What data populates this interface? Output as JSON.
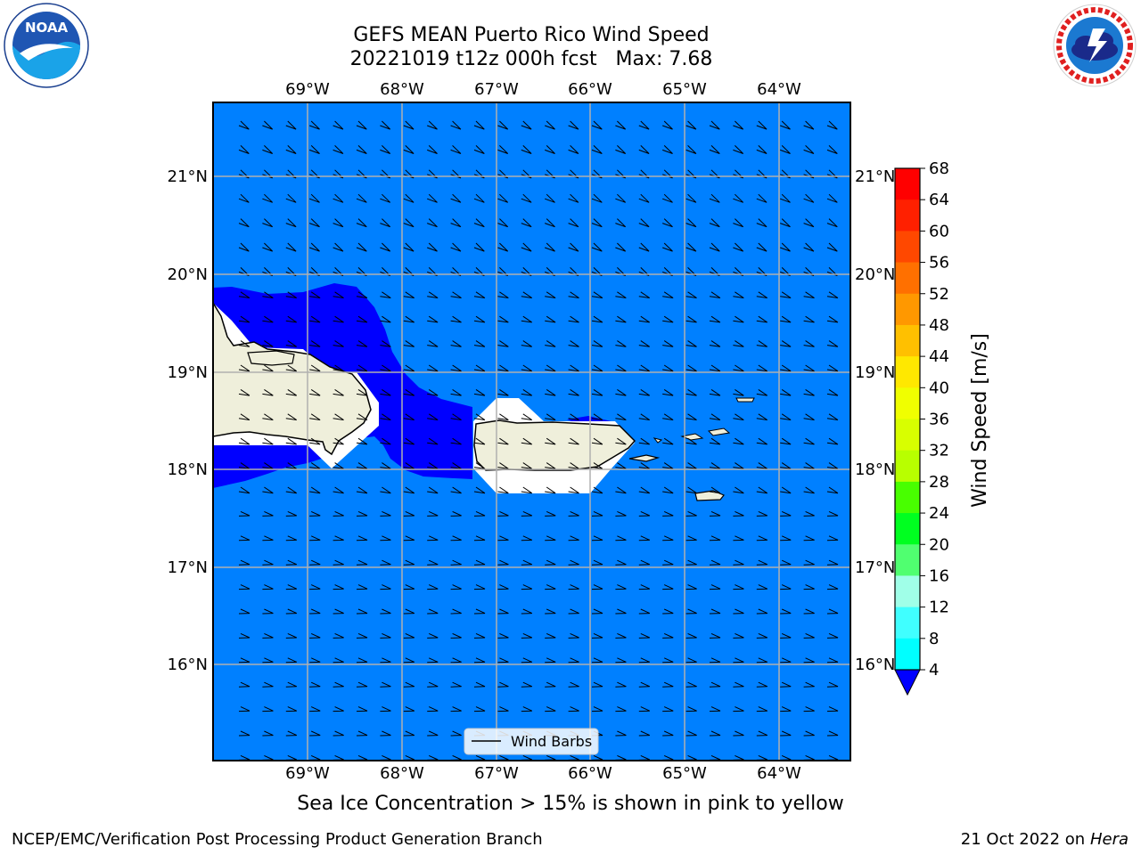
{
  "title": {
    "line1": "GEFS MEAN Puerto Rico Wind Speed",
    "line2": "20221019 t12z 000h fcst   Max: 7.68"
  },
  "logos": {
    "left": {
      "name": "noaa-logo",
      "text": "NOAA",
      "ring_text": "NATIONAL OCEANIC AND ATMOSPHERIC ADMINISTRATION · U.S. DEPARTMENT OF COMMERCE"
    },
    "right": {
      "name": "nws-logo",
      "ring_text": "NATIONAL WEATHER SERVICE"
    }
  },
  "map": {
    "lon_labels": [
      "69°W",
      "68°W",
      "67°W",
      "66°W",
      "65°W",
      "64°W"
    ],
    "lat_labels": [
      "21°N",
      "20°N",
      "19°N",
      "18°N",
      "17°N",
      "16°N"
    ],
    "legend_label": "Wind Barbs",
    "ocean_color": "#0080ff",
    "stronger_wind_color": "#0000ff",
    "land_color": "#efefdb"
  },
  "colorbar": {
    "label": "Wind Speed [m/s]",
    "ticks": [
      "68",
      "64",
      "60",
      "56",
      "52",
      "48",
      "44",
      "40",
      "36",
      "32",
      "28",
      "24",
      "20",
      "16",
      "12",
      "8",
      "4"
    ],
    "colors": [
      "#ff0000",
      "#ff2000",
      "#ff4800",
      "#ff7000",
      "#ff9800",
      "#ffc000",
      "#ffe800",
      "#f0ff00",
      "#d8ff00",
      "#b8ff00",
      "#48ff00",
      "#00ff20",
      "#50ff70",
      "#a0ffe8",
      "#40ffff",
      "#00ffff",
      "#0080ff"
    ],
    "extend_color": "#0000ff"
  },
  "caption": "Sea Ice Concentration > 15% is shown in pink to yellow",
  "footer": {
    "left": "NCEP/EMC/Verification Post Processing Product Generation Branch",
    "right_prefix": "21 Oct 2022 on ",
    "right_host": "Hera"
  }
}
